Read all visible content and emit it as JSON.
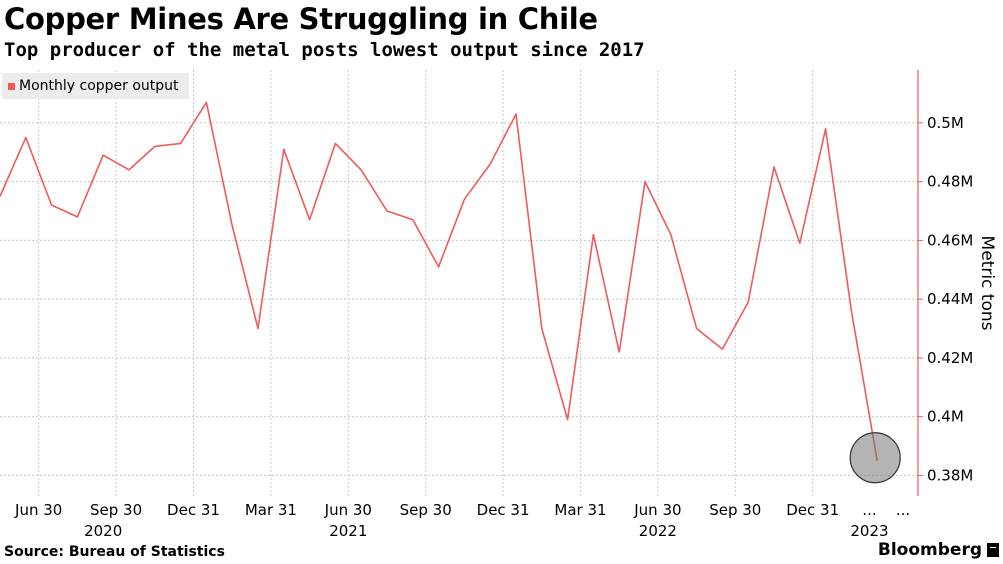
{
  "title": "Copper Mines Are Struggling in Chile",
  "subtitle": "Top producer of the metal posts lowest output since 2017",
  "source": "Source: Bureau of Statistics",
  "brand": "Bloomberg",
  "colors": {
    "line": "#ef5b5b",
    "grid": "#c8c8c8",
    "axis": "#ef5b5b",
    "highlight": "#777777"
  },
  "chart_data": {
    "type": "line",
    "title": "Copper Mines Are Struggling in Chile",
    "ylabel": "Metric tons",
    "ylim": [
      0.373,
      0.518
    ],
    "yticks": [
      0.38,
      0.4,
      0.42,
      0.44,
      0.46,
      0.48,
      0.5
    ],
    "ytick_labels": [
      "0.38M",
      "0.4M",
      "0.42M",
      "0.44M",
      "0.46M",
      "0.48M",
      "0.5M"
    ],
    "legend": "top-left",
    "grid": true,
    "x_month_ticks": [
      {
        "index": 1.5,
        "label": "Jun 30"
      },
      {
        "index": 4.5,
        "label": "Sep 30"
      },
      {
        "index": 7.5,
        "label": "Dec 31"
      },
      {
        "index": 10.5,
        "label": "Mar 31"
      },
      {
        "index": 13.5,
        "label": "Jun 30"
      },
      {
        "index": 16.5,
        "label": "Sep 30"
      },
      {
        "index": 19.5,
        "label": "Dec 31"
      },
      {
        "index": 22.5,
        "label": "Mar 31"
      },
      {
        "index": 25.5,
        "label": "Jun 30"
      },
      {
        "index": 28.5,
        "label": "Sep 30"
      },
      {
        "index": 31.5,
        "label": "Dec 31"
      },
      {
        "index": 33.7,
        "label": "..."
      },
      {
        "index": 35.0,
        "label": "..."
      }
    ],
    "x_year_ticks": [
      {
        "index": 4.0,
        "label": "2020"
      },
      {
        "index": 13.5,
        "label": "2021"
      },
      {
        "index": 25.5,
        "label": "2022"
      },
      {
        "index": 33.7,
        "label": "2023"
      }
    ],
    "series": [
      {
        "name": "Monthly copper output",
        "values": [
          0.475,
          0.495,
          0.472,
          0.468,
          0.489,
          0.484,
          0.492,
          0.493,
          0.507,
          0.465,
          0.43,
          0.491,
          0.467,
          0.493,
          0.484,
          0.47,
          0.467,
          0.451,
          0.474,
          0.486,
          0.503,
          0.43,
          0.399,
          0.462,
          0.422,
          0.48,
          0.462,
          0.43,
          0.423,
          0.439,
          0.485,
          0.459,
          0.498,
          0.436,
          0.385
        ]
      }
    ],
    "highlight_index": 34
  }
}
